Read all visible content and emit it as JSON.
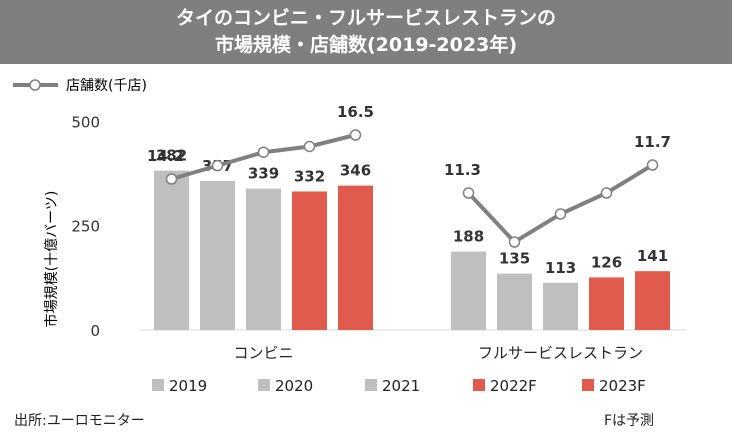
{
  "title_line1": "タイのコンビニ・フルサービスレストランの",
  "title_line2": "市場規模・店舗数(2019-2023年)",
  "source": "出所:ユーロモニター",
  "footnote": "Fは予測",
  "colors": {
    "gray": "#bfbfbf",
    "red": "#e05a4e",
    "line": "#808080",
    "title_bg": "#7f7f7f"
  },
  "chart_data": {
    "type": "bar",
    "xlabel": "",
    "ylabel": "市場規模(十億バーツ)",
    "ylim": [
      0,
      580
    ],
    "yticks": [
      0,
      250,
      500
    ],
    "categories": [
      "コンビニ",
      "フルサービスレストラン"
    ],
    "series": [
      {
        "name": "2019",
        "color": "#bfbfbf",
        "values": [
          382,
          188
        ]
      },
      {
        "name": "2020",
        "color": "#bfbfbf",
        "values": [
          357,
          135
        ]
      },
      {
        "name": "2021",
        "color": "#bfbfbf",
        "values": [
          339,
          113
        ]
      },
      {
        "name": "2022F",
        "color": "#e05a4e",
        "values": [
          332,
          126
        ]
      },
      {
        "name": "2023F",
        "color": "#e05a4e",
        "values": [
          346,
          141
        ]
      }
    ],
    "line_series": {
      "name": "店舗数(千店)",
      "groups": [
        {
          "category": "コンビニ",
          "values": [
            14.2,
            14.9,
            15.6,
            15.9,
            16.5
          ],
          "labels": [
            "14.2",
            "",
            "",
            "",
            "16.5"
          ]
        },
        {
          "category": "フルサービスレストラン",
          "values": [
            11.3,
            10.6,
            11.0,
            11.3,
            11.7
          ],
          "labels": [
            "11.3",
            "",
            "",
            "",
            "11.7"
          ]
        }
      ]
    },
    "legend": "bottom"
  }
}
